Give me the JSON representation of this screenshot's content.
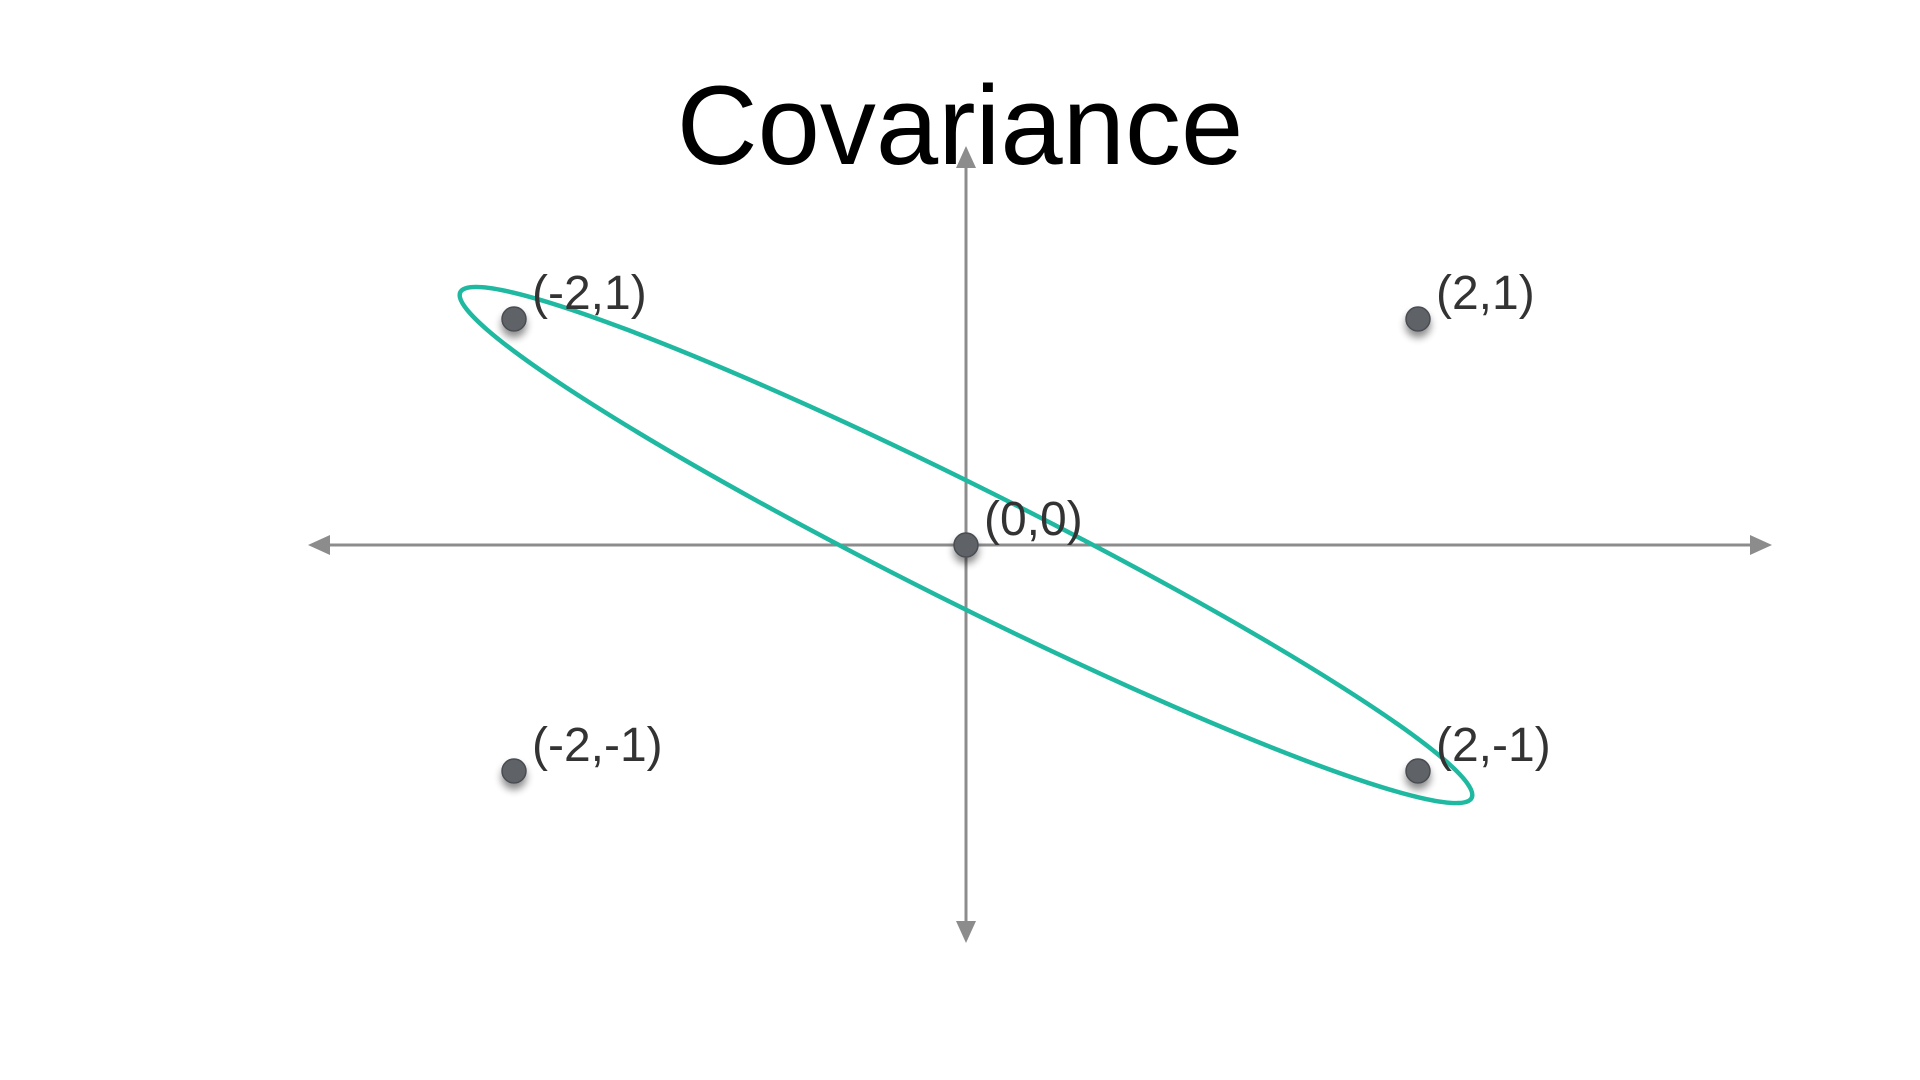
{
  "title": "Covariance",
  "colors": {
    "axis": "#8c8c8c",
    "point": "#5f6368",
    "ellipse": "#1fb8a0",
    "label": "#333333"
  },
  "chart_data": {
    "type": "scatter",
    "title": "Covariance",
    "xlabel": "",
    "ylabel": "",
    "xlim": [
      -2.8,
      3.5
    ],
    "ylim": [
      -2.0,
      1.7
    ],
    "grid": false,
    "points": [
      {
        "x": -2,
        "y": 1,
        "label": "(-2,1)"
      },
      {
        "x": 2,
        "y": 1,
        "label": "(2,1)"
      },
      {
        "x": 0,
        "y": 0,
        "label": "(0,0)"
      },
      {
        "x": -2,
        "y": -1,
        "label": "(-2,-1)"
      },
      {
        "x": 2,
        "y": -1,
        "label": "(2,-1)"
      }
    ],
    "annotations": [
      {
        "type": "ellipse",
        "encloses": [
          "(-2,1)",
          "(0,0)",
          "(2,-1)"
        ],
        "color": "#1fb8a0"
      }
    ]
  }
}
